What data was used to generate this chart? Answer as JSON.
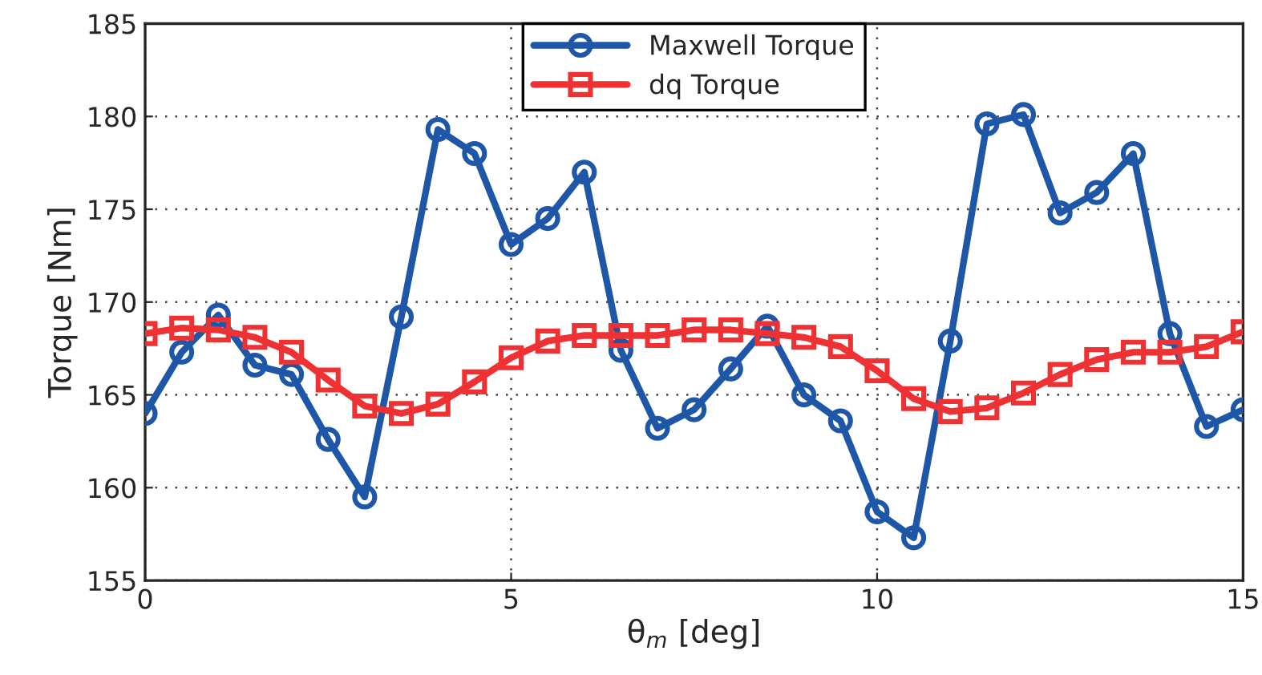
{
  "chart_data": {
    "type": "line",
    "xlabel": "θ$_{m}$ [deg]",
    "ylabel": "Torque [Nm]",
    "x": [
      0,
      0.5,
      1,
      1.5,
      2,
      2.5,
      3,
      3.5,
      4,
      4.5,
      5,
      5.5,
      6,
      6.5,
      7,
      7.5,
      8,
      8.5,
      9,
      9.5,
      10,
      10.5,
      11,
      11.5,
      12,
      12.5,
      13,
      13.5,
      14,
      14.5,
      15
    ],
    "series": [
      {
        "name": "Maxwell Torque",
        "color": "#1f57a8",
        "marker": "circle",
        "values": [
          164,
          167.3,
          169.3,
          166.6,
          166.1,
          162.6,
          159.5,
          169.2,
          179.3,
          178,
          173.1,
          174.5,
          177,
          167.4,
          163.2,
          164.2,
          166.4,
          168.7,
          165,
          163.6,
          158.7,
          157.3,
          167.9,
          179.6,
          180.1,
          174.8,
          175.9,
          178,
          168.3,
          163.3,
          164.2
        ]
      },
      {
        "name": "dq Torque",
        "color": "#ee3233",
        "marker": "square",
        "values": [
          168.3,
          168.6,
          168.5,
          168.1,
          167.3,
          165.8,
          164.4,
          164.0,
          164.5,
          165.7,
          167.0,
          167.9,
          168.2,
          168.2,
          168.2,
          168.5,
          168.5,
          168.3,
          168.1,
          167.6,
          166.3,
          164.8,
          164.1,
          164.3,
          165.1,
          166.1,
          166.9,
          167.3,
          167.3,
          167.6,
          168.4
        ]
      }
    ],
    "xlim": [
      0,
      15
    ],
    "xticks": [
      0,
      5,
      10,
      15
    ],
    "ylim": [
      155,
      185
    ],
    "yticks": [
      155,
      160,
      165,
      170,
      175,
      180,
      185
    ],
    "grid": true,
    "legend": "top",
    "line_style": "solid"
  }
}
